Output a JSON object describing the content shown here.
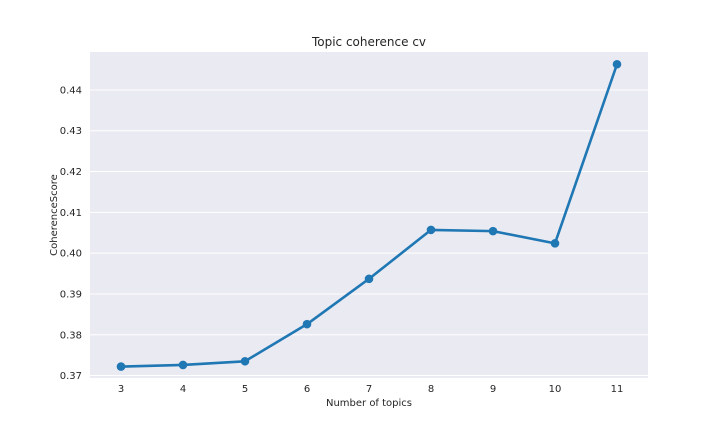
{
  "chart_data": {
    "type": "line",
    "title": "Topic coherence cv",
    "xlabel": "Number of topics",
    "ylabel": "CoherenceScore",
    "x": [
      3,
      4,
      5,
      6,
      7,
      8,
      9,
      10,
      11
    ],
    "x_tick_labels": [
      "3",
      "4",
      "5",
      "6",
      "7",
      "8",
      "9",
      "10",
      "11"
    ],
    "series": [
      {
        "values": [
          0.3722,
          0.3726,
          0.3735,
          0.3826,
          0.3937,
          0.4057,
          0.4054,
          0.4024,
          0.4463
        ]
      }
    ],
    "y_ticks": [
      0.37,
      0.38,
      0.39,
      0.4,
      0.41,
      0.42,
      0.43,
      0.44
    ],
    "y_tick_labels": [
      "0.37",
      "0.38",
      "0.39",
      "0.40",
      "0.41",
      "0.42",
      "0.43",
      "0.44"
    ],
    "ylim": [
      0.3694,
      0.4493
    ],
    "grid": true,
    "colors": {
      "plot_background": "#eaeaf2",
      "grid": "#ffffff",
      "line": "#1f77b4",
      "text": "#262626"
    }
  }
}
